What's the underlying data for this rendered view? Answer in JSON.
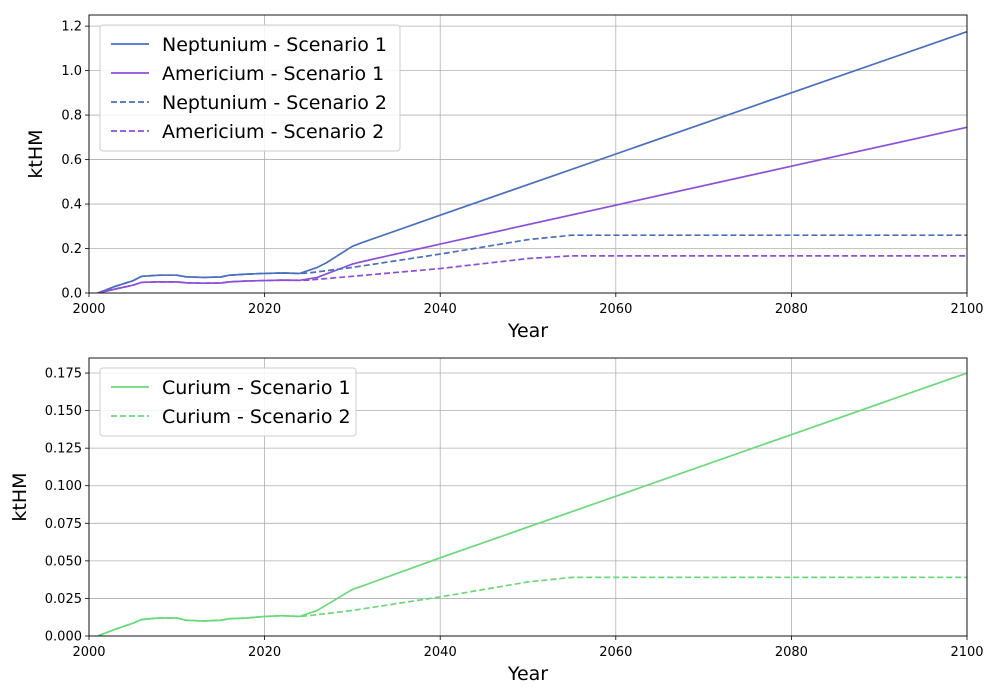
{
  "chart_data": [
    {
      "type": "line",
      "xlabel": "Year",
      "ylabel": "ktHM",
      "xlim": [
        2000,
        2100
      ],
      "ylim": [
        0,
        1.25
      ],
      "xticks": [
        "2000",
        "2020",
        "2040",
        "2060",
        "2080",
        "2100"
      ],
      "yticks": [
        "0.0",
        "0.2",
        "0.4",
        "0.6",
        "0.8",
        "1.0",
        "1.2"
      ],
      "grid": true,
      "legend_position": "upper-left",
      "series": [
        {
          "name": "Neptunium - Scenario 1",
          "color": "#4a6fbf",
          "dash": "solid",
          "x": [
            2001,
            2003,
            2005,
            2006,
            2008,
            2010,
            2011,
            2013,
            2015,
            2016,
            2018,
            2020,
            2022,
            2024,
            2026,
            2027,
            2028,
            2030,
            2031,
            2040,
            2060,
            2080,
            2100
          ],
          "y": [
            0.0,
            0.03,
            0.055,
            0.075,
            0.08,
            0.08,
            0.073,
            0.07,
            0.072,
            0.08,
            0.085,
            0.088,
            0.09,
            0.088,
            0.115,
            0.135,
            0.16,
            0.21,
            0.225,
            0.35,
            0.625,
            0.9,
            1.175
          ]
        },
        {
          "name": "Americium - Scenario 1",
          "color": "#8d4fd8",
          "dash": "solid",
          "x": [
            2001,
            2003,
            2005,
            2006,
            2008,
            2010,
            2011,
            2013,
            2015,
            2016,
            2018,
            2020,
            2022,
            2024,
            2026,
            2027,
            2028,
            2030,
            2031,
            2040,
            2060,
            2080,
            2100
          ],
          "y": [
            0.0,
            0.018,
            0.035,
            0.048,
            0.05,
            0.05,
            0.046,
            0.044,
            0.045,
            0.05,
            0.054,
            0.056,
            0.058,
            0.057,
            0.07,
            0.085,
            0.1,
            0.13,
            0.14,
            0.22,
            0.395,
            0.57,
            0.745
          ]
        },
        {
          "name": "Neptunium - Scenario 2",
          "color": "#4a6fbf",
          "dash": "dashed",
          "x": [
            2001,
            2003,
            2005,
            2006,
            2008,
            2010,
            2011,
            2013,
            2015,
            2016,
            2018,
            2020,
            2022,
            2024,
            2025,
            2030,
            2040,
            2050,
            2055,
            2060,
            2080,
            2100
          ],
          "y": [
            0.0,
            0.03,
            0.055,
            0.075,
            0.08,
            0.08,
            0.073,
            0.07,
            0.072,
            0.08,
            0.085,
            0.088,
            0.09,
            0.088,
            0.09,
            0.115,
            0.175,
            0.24,
            0.26,
            0.26,
            0.26,
            0.26
          ]
        },
        {
          "name": "Americium - Scenario 2",
          "color": "#8d4fd8",
          "dash": "dashed",
          "x": [
            2001,
            2003,
            2005,
            2006,
            2008,
            2010,
            2011,
            2013,
            2015,
            2016,
            2018,
            2020,
            2022,
            2024,
            2025,
            2030,
            2040,
            2050,
            2055,
            2060,
            2080,
            2100
          ],
          "y": [
            0.0,
            0.018,
            0.035,
            0.048,
            0.05,
            0.05,
            0.046,
            0.044,
            0.045,
            0.05,
            0.054,
            0.056,
            0.058,
            0.057,
            0.058,
            0.075,
            0.11,
            0.155,
            0.167,
            0.167,
            0.167,
            0.167
          ]
        }
      ]
    },
    {
      "type": "line",
      "xlabel": "Year",
      "ylabel": "ktHM",
      "xlim": [
        2000,
        2100
      ],
      "ylim": [
        0,
        0.185
      ],
      "xticks": [
        "2000",
        "2020",
        "2040",
        "2060",
        "2080",
        "2100"
      ],
      "yticks": [
        "0.000",
        "0.025",
        "0.050",
        "0.075",
        "0.100",
        "0.125",
        "0.150",
        "0.175"
      ],
      "grid": true,
      "legend_position": "upper-left",
      "series": [
        {
          "name": "Curium - Scenario 1",
          "color": "#6ad97a",
          "dash": "solid",
          "x": [
            2001,
            2003,
            2005,
            2006,
            2008,
            2010,
            2011,
            2013,
            2015,
            2016,
            2018,
            2020,
            2022,
            2024,
            2026,
            2027,
            2028,
            2030,
            2031,
            2040,
            2060,
            2080,
            2100
          ],
          "y": [
            0.0,
            0.0045,
            0.0085,
            0.011,
            0.012,
            0.012,
            0.0105,
            0.01,
            0.0105,
            0.0115,
            0.012,
            0.013,
            0.0135,
            0.013,
            0.017,
            0.0205,
            0.024,
            0.031,
            0.033,
            0.052,
            0.093,
            0.134,
            0.175
          ]
        },
        {
          "name": "Curium - Scenario 2",
          "color": "#6ad97a",
          "dash": "dashed",
          "x": [
            2001,
            2003,
            2005,
            2006,
            2008,
            2010,
            2011,
            2013,
            2015,
            2016,
            2018,
            2020,
            2022,
            2024,
            2025,
            2030,
            2040,
            2050,
            2055,
            2060,
            2080,
            2100
          ],
          "y": [
            0.0,
            0.0045,
            0.0085,
            0.011,
            0.012,
            0.012,
            0.0105,
            0.01,
            0.0105,
            0.0115,
            0.012,
            0.013,
            0.0135,
            0.013,
            0.0135,
            0.017,
            0.026,
            0.036,
            0.039,
            0.039,
            0.039,
            0.039
          ]
        }
      ]
    }
  ]
}
